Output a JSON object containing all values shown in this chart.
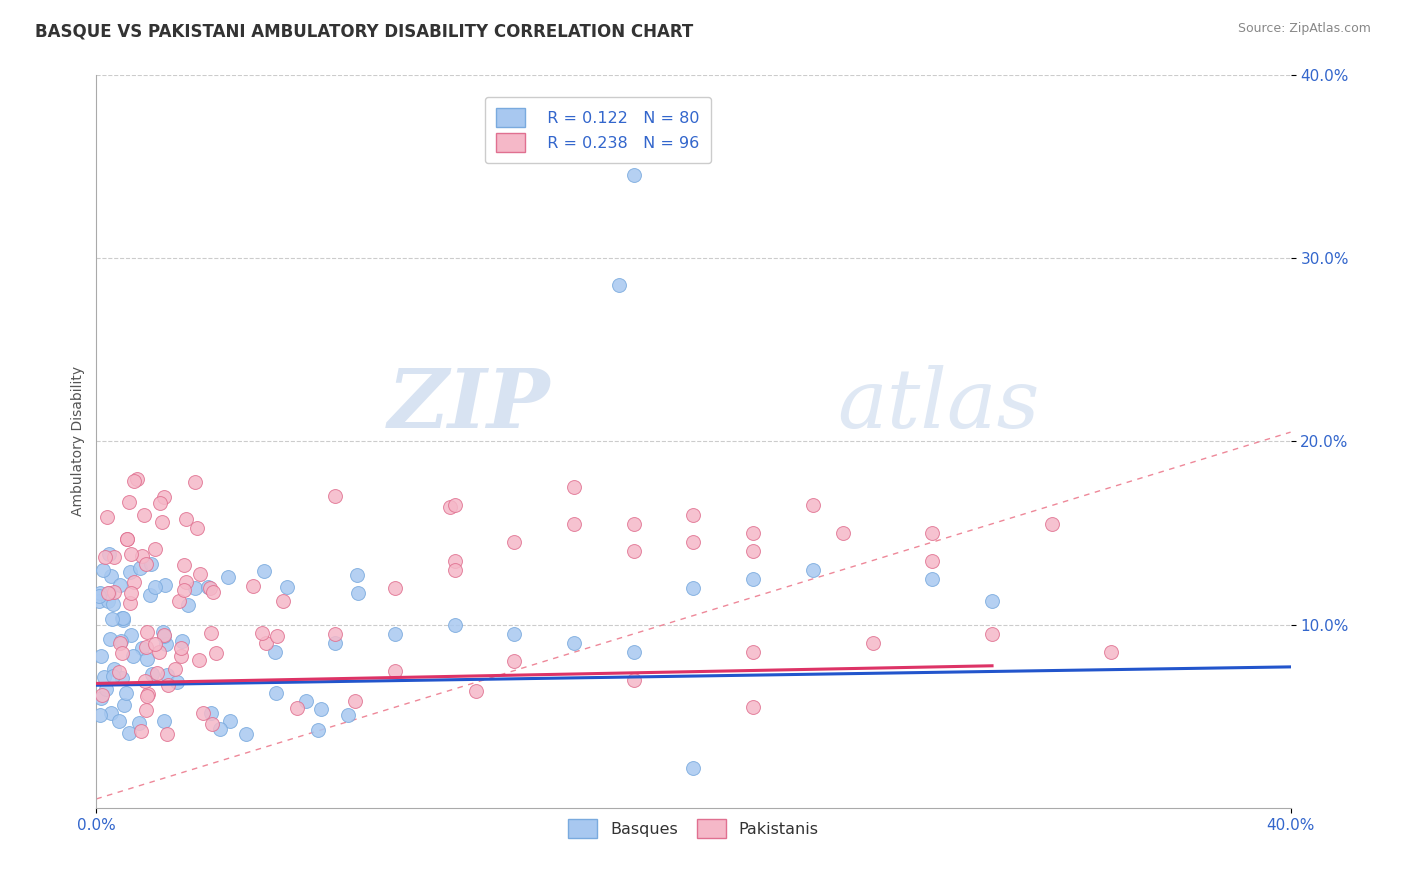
{
  "title": "BASQUE VS PAKISTANI AMBULATORY DISABILITY CORRELATION CHART",
  "source": "Source: ZipAtlas.com",
  "ylabel": "Ambulatory Disability",
  "xlim": [
    0.0,
    0.4
  ],
  "ylim": [
    0.0,
    0.4
  ],
  "basque_color": "#a8c8f0",
  "basque_edge": "#7aaade",
  "pakistani_color": "#f5b8c8",
  "pakistani_edge": "#e07090",
  "basque_R": 0.122,
  "basque_N": 80,
  "pakistani_R": 0.238,
  "pakistani_N": 96,
  "legend_R_color": "#3366cc",
  "trend_basque_color": "#2255cc",
  "trend_pakistani_color": "#dd3366",
  "trend_dashed_color": "#ee8899",
  "background_color": "#ffffff",
  "grid_color": "#cccccc",
  "title_fontsize": 12,
  "watermark_zip_color": "#c8d8ee",
  "watermark_atlas_color": "#c8d8ee",
  "tick_color": "#3366cc"
}
